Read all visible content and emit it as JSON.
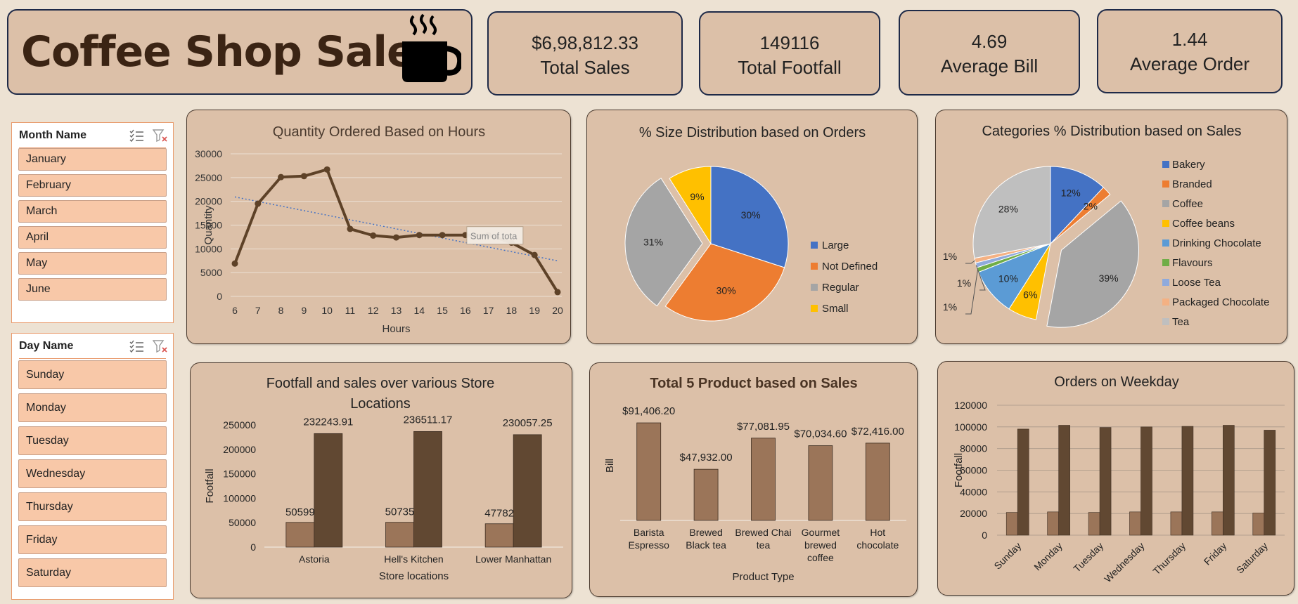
{
  "header": {
    "title": "Coffee Shop Sales",
    "icon": "coffee-cup-icon"
  },
  "kpis": [
    {
      "value": "$6,98,812.33",
      "label": "Total Sales"
    },
    {
      "value": "149116",
      "label": "Total Footfall"
    },
    {
      "value": "4.69",
      "label": "Average Bill"
    },
    {
      "value": "1.44",
      "label": "Average Order"
    }
  ],
  "slicers": {
    "month": {
      "title": "Month Name",
      "items": [
        "January",
        "February",
        "March",
        "April",
        "May",
        "June"
      ]
    },
    "day": {
      "title": "Day Name",
      "items": [
        "Sunday",
        "Monday",
        "Tuesday",
        "Wednesday",
        "Thursday",
        "Friday",
        "Saturday"
      ]
    }
  },
  "colors": {
    "line": "#5e4228",
    "bar_dark": "#614832",
    "bar_light": "#9b7559",
    "large": "#4472c4",
    "not_defined": "#ed7d31",
    "regular": "#a5a5a5",
    "small": "#ffc000"
  },
  "chart_data": [
    {
      "type": "line",
      "title": "Quantity Ordered Based on Hours",
      "xlabel": "Hours",
      "ylabel": "Quantity",
      "x": [
        6,
        7,
        8,
        9,
        10,
        11,
        12,
        13,
        14,
        15,
        16,
        17,
        18,
        19,
        20
      ],
      "values": [
        6900,
        19500,
        25100,
        25300,
        26700,
        14200,
        12800,
        12400,
        12900,
        12900,
        12900,
        12900,
        11300,
        8700,
        900
      ],
      "ylim": [
        0,
        30000
      ],
      "yticks": [
        0,
        5000,
        10000,
        15000,
        20000,
        25000,
        30000
      ],
      "trendline": [
        20928,
        7484
      ],
      "tooltip": "Sum of tota",
      "grid": true
    },
    {
      "type": "pie",
      "title": "% Size Distribution based on Orders",
      "categories": [
        "Large",
        "Not Defined",
        "Regular",
        "Small"
      ],
      "values": [
        30,
        30,
        31,
        9
      ],
      "labels": [
        "30%",
        "30%",
        "31%",
        "9%"
      ],
      "exploded": "Regular",
      "legend": "right"
    },
    {
      "type": "pie",
      "title": "Categories % Distribution based on Sales",
      "categories": [
        "Bakery",
        "Branded",
        "Coffee",
        "Coffee beans",
        "Drinking Chocolate",
        "Flavours",
        "Loose Tea",
        "Packaged Chocolate",
        "Tea"
      ],
      "values": [
        12,
        2,
        39,
        6,
        10,
        1,
        1,
        1,
        28
      ],
      "labels": [
        "12%",
        "2%",
        "39%",
        "6%",
        "10%",
        "1%",
        "1%",
        "1%",
        "28%"
      ],
      "colors": [
        "#4472c4",
        "#ed7d31",
        "#a5a5a5",
        "#ffc000",
        "#5b9bd5",
        "#70ad47",
        "#8faadc",
        "#f4b183",
        "#bfbfbf"
      ],
      "exploded": "Coffee",
      "legend": "right"
    },
    {
      "type": "bar",
      "title": "Footfall and sales over various Store Locations",
      "title_lines": [
        "Footfall and sales over various Store",
        "Locations"
      ],
      "xlabel": "Store locations",
      "ylabel": "Footfall",
      "categories": [
        "Astoria",
        "Hell's Kitchen",
        "Lower Manhattan"
      ],
      "series": [
        {
          "values": [
            50599,
            50735,
            47782
          ],
          "labels": [
            "50599",
            "50735",
            "47782"
          ]
        },
        {
          "values": [
            232243.91,
            236511.17,
            230057.25
          ],
          "labels": [
            "232243.91",
            "236511.17",
            "230057.25"
          ]
        }
      ],
      "ylim": [
        0,
        250000
      ],
      "yticks": [
        0,
        50000,
        100000,
        150000,
        200000,
        250000
      ]
    },
    {
      "type": "bar",
      "title": "Total 5 Product based on Sales",
      "xlabel": "Product Type",
      "ylabel": "Bill",
      "categories": [
        [
          "Barista",
          "Espresso"
        ],
        [
          "Brewed",
          "Black tea"
        ],
        [
          "Brewed Chai",
          "tea"
        ],
        [
          "Gourmet",
          "brewed",
          "coffee"
        ],
        [
          "Hot",
          "chocolate"
        ]
      ],
      "values": [
        91406.2,
        47932.0,
        77081.95,
        70034.6,
        72416.0
      ],
      "labels": [
        "$91,406.20",
        "$47,932.00",
        "$77,081.95",
        "$70,034.60",
        "$72,416.00"
      ],
      "ylim": [
        0,
        100000
      ]
    },
    {
      "type": "bar",
      "title": "Orders on Weekday",
      "ylabel": "Footfall",
      "categories": [
        "Sunday",
        "Monday",
        "Tuesday",
        "Wednesday",
        "Thursday",
        "Friday",
        "Saturday"
      ],
      "series": [
        {
          "values": [
            21000,
            21500,
            21000,
            21500,
            21500,
            21500,
            20500
          ]
        },
        {
          "values": [
            98000,
            101500,
            99500,
            100000,
            100500,
            101500,
            97000
          ]
        }
      ],
      "ylim": [
        0,
        120000
      ],
      "yticks": [
        0,
        20000,
        40000,
        60000,
        80000,
        100000,
        120000
      ],
      "grid": true
    }
  ]
}
